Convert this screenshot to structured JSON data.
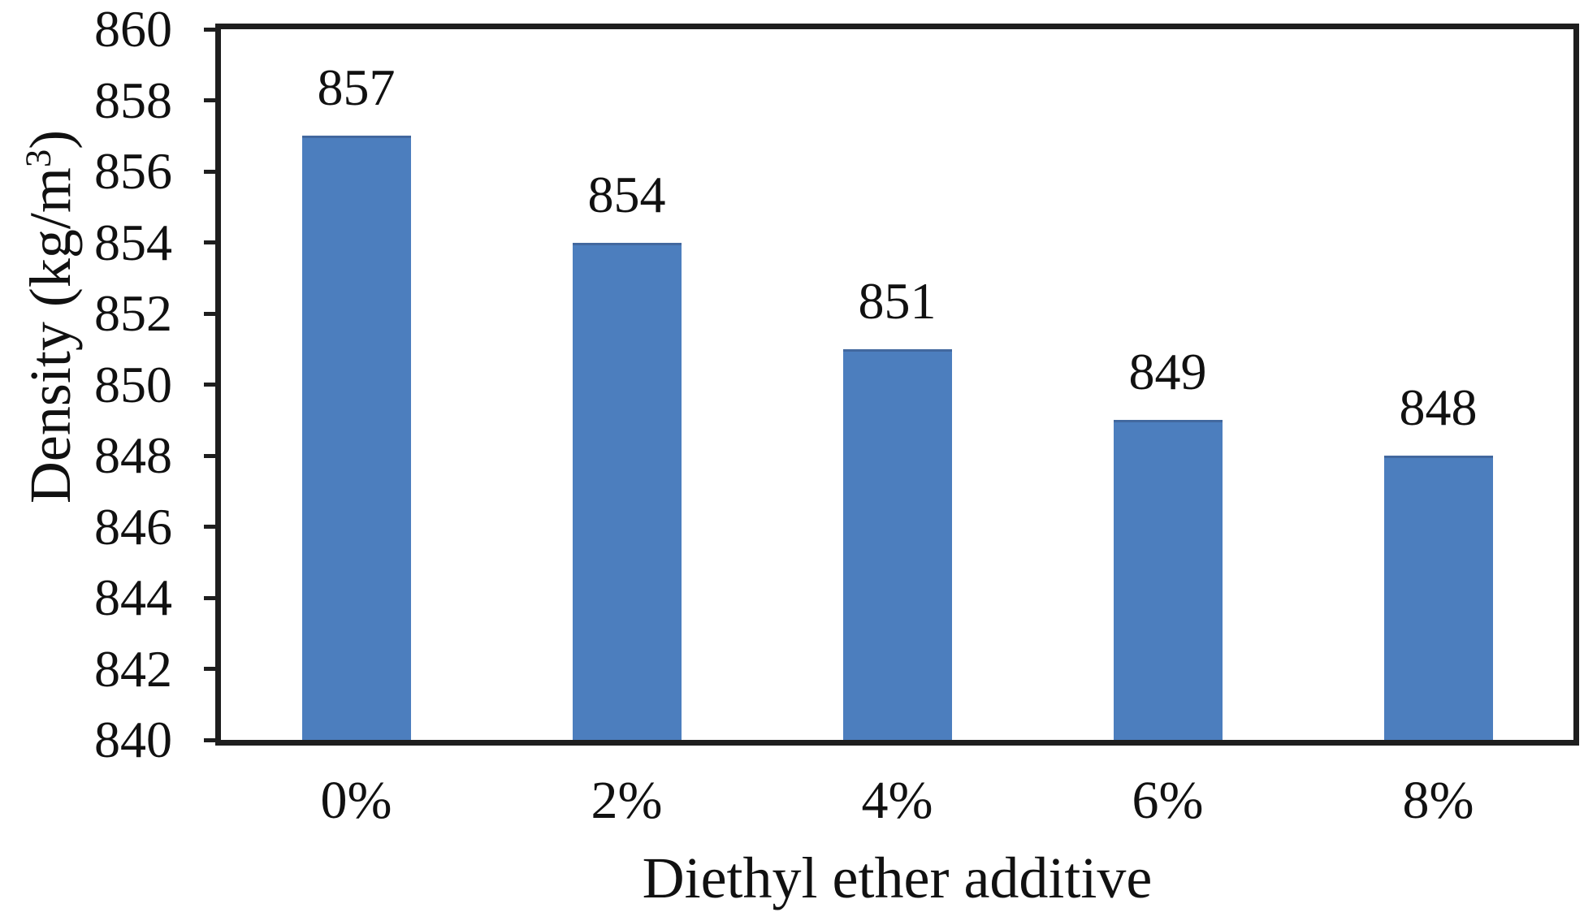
{
  "chart_data": {
    "type": "bar",
    "categories": [
      "0%",
      "2%",
      "4%",
      "6%",
      "8%"
    ],
    "values": [
      857,
      854,
      851,
      849,
      848
    ],
    "data_labels": [
      "857",
      "854",
      "851",
      "849",
      "848"
    ],
    "title": "",
    "xlabel": "Diethyl ether additive",
    "ylabel": {
      "prefix": "Density (kg/m",
      "superscript": "3",
      "suffix": ")"
    },
    "ylim": [
      840,
      860
    ],
    "ytick_step": 2,
    "yticks": [
      860,
      858,
      856,
      854,
      852,
      850,
      848,
      846,
      844,
      842,
      840
    ],
    "grid": false,
    "legend": false,
    "colors": {
      "bar_fill": "#4c7ebe",
      "bar_top_edge": "#42689f",
      "axis": "#1e1e1e",
      "text": "#111111",
      "background": "#ffffff"
    }
  }
}
